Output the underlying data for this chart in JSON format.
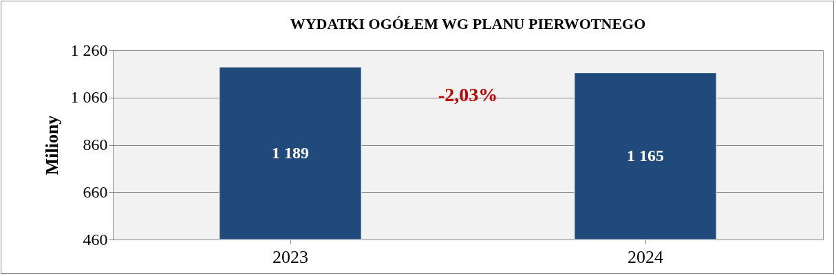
{
  "chart_data": {
    "type": "bar",
    "title": "WYDATKI OGÓŁEM WG PLANU PIERWOTNEGO",
    "ylabel": "Miliony",
    "categories": [
      "2023",
      "2024"
    ],
    "values": [
      1189,
      1165
    ],
    "value_labels": [
      "1 189",
      "1 165"
    ],
    "color": "#214a7c",
    "ylim": [
      460,
      1260
    ],
    "yticks": [
      {
        "value": 460,
        "label": "460"
      },
      {
        "value": 660,
        "label": "660"
      },
      {
        "value": 860,
        "label": "860"
      },
      {
        "value": 1060,
        "label": "1 060"
      },
      {
        "value": 1260,
        "label": "1 260"
      }
    ],
    "grid": "y",
    "annotations": [
      "-2,03%"
    ]
  }
}
